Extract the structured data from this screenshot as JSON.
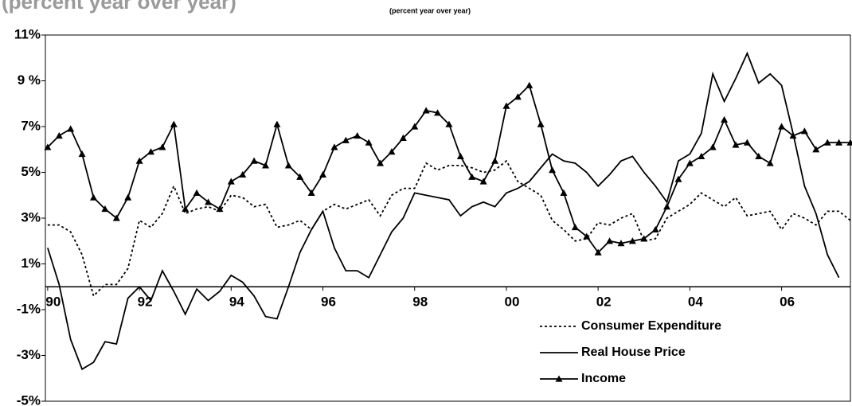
{
  "chart_data": {
    "type": "line",
    "subtitle": "(percent year over year)",
    "x": [
      1990.0,
      1990.25,
      1990.5,
      1990.75,
      1991.0,
      1991.25,
      1991.5,
      1991.75,
      1992.0,
      1992.25,
      1992.5,
      1992.75,
      1993.0,
      1993.25,
      1993.5,
      1993.75,
      1994.0,
      1994.25,
      1994.5,
      1994.75,
      1995.0,
      1995.25,
      1995.5,
      1995.75,
      1996.0,
      1996.25,
      1996.5,
      1996.75,
      1997.0,
      1997.25,
      1997.5,
      1997.75,
      1998.0,
      1998.25,
      1998.5,
      1998.75,
      1999.0,
      1999.25,
      1999.5,
      1999.75,
      2000.0,
      2000.25,
      2000.5,
      2000.75,
      2001.0,
      2001.25,
      2001.5,
      2001.75,
      2002.0,
      2002.25,
      2002.5,
      2002.75,
      2003.0,
      2003.25,
      2003.5,
      2003.75,
      2004.0,
      2004.25,
      2004.5,
      2004.75,
      2005.0,
      2005.25,
      2005.5,
      2005.75,
      2006.0,
      2006.25,
      2006.5,
      2006.75,
      2007.0,
      2007.25,
      2007.5
    ],
    "series": [
      {
        "name": "Consumer Expenditure",
        "color": "#000000",
        "line_style": "dotted",
        "marker": "none",
        "values": [
          2.7,
          2.7,
          2.4,
          1.4,
          -0.4,
          0.1,
          0.1,
          0.8,
          2.9,
          2.6,
          3.2,
          4.4,
          3.2,
          3.4,
          3.5,
          3.3,
          4.0,
          3.9,
          3.5,
          3.6,
          2.6,
          2.7,
          2.9,
          2.5,
          3.3,
          3.6,
          3.4,
          3.6,
          3.8,
          3.1,
          4.0,
          4.3,
          4.3,
          5.4,
          5.1,
          5.3,
          5.3,
          5.2,
          5.0,
          5.1,
          5.5,
          4.6,
          4.3,
          4.0,
          2.9,
          2.5,
          2.0,
          2.1,
          2.8,
          2.7,
          3.0,
          3.2,
          2.0,
          2.1,
          3.0,
          3.3,
          3.6,
          4.1,
          3.8,
          3.5,
          3.9,
          3.1,
          3.2,
          3.3,
          2.5,
          3.2,
          3.0,
          2.7,
          3.3,
          3.3,
          2.9
        ]
      },
      {
        "name": "Real House Price",
        "color": "#000000",
        "line_style": "solid",
        "marker": "none",
        "values": [
          1.7,
          0.1,
          -2.3,
          -3.6,
          -3.3,
          -2.4,
          -2.5,
          -0.5,
          0.0,
          -0.6,
          0.7,
          -0.2,
          -1.2,
          -0.1,
          -0.6,
          -0.2,
          0.5,
          0.2,
          -0.4,
          -1.3,
          -1.4,
          0.0,
          1.5,
          2.5,
          3.3,
          1.7,
          0.7,
          0.7,
          0.4,
          1.4,
          2.4,
          3.0,
          4.1,
          4.0,
          3.9,
          3.8,
          3.1,
          3.5,
          3.7,
          3.5,
          4.1,
          4.3,
          4.6,
          5.2,
          5.8,
          5.5,
          5.4,
          5.0,
          4.4,
          4.9,
          5.5,
          5.7,
          5.0,
          4.4,
          3.7,
          5.5,
          5.8,
          6.7,
          9.3,
          8.1,
          9.1,
          10.2,
          8.9,
          9.3,
          8.8,
          6.7,
          4.4,
          3.2,
          1.4,
          0.4,
          null
        ]
      },
      {
        "name": "Income",
        "color": "#000000",
        "line_style": "solid",
        "marker": "triangle",
        "values": [
          6.1,
          6.6,
          6.9,
          5.8,
          3.9,
          3.4,
          3.0,
          3.9,
          5.5,
          5.9,
          6.1,
          7.1,
          3.4,
          4.1,
          3.7,
          3.4,
          4.6,
          4.9,
          5.5,
          5.3,
          7.1,
          5.3,
          4.8,
          4.1,
          4.9,
          6.1,
          6.4,
          6.6,
          6.3,
          5.4,
          5.9,
          6.5,
          7.0,
          7.7,
          7.6,
          7.1,
          5.7,
          4.8,
          4.6,
          5.5,
          7.9,
          8.3,
          8.8,
          7.1,
          5.1,
          4.1,
          2.6,
          2.2,
          1.5,
          2.0,
          1.9,
          2.0,
          2.1,
          2.5,
          3.5,
          4.7,
          5.4,
          5.7,
          6.1,
          7.3,
          6.2,
          6.3,
          5.7,
          5.4,
          7.0,
          6.6,
          6.8,
          6.0,
          6.3,
          6.3,
          6.3
        ]
      }
    ],
    "xlim": [
      1989.95,
      2007.5
    ],
    "xticks": [
      {
        "value": 1990,
        "label": "90"
      },
      {
        "value": 1992,
        "label": "92"
      },
      {
        "value": 1994,
        "label": "94"
      },
      {
        "value": 1996,
        "label": "96"
      },
      {
        "value": 1998,
        "label": "98"
      },
      {
        "value": 2000,
        "label": "00"
      },
      {
        "value": 2002,
        "label": "02"
      },
      {
        "value": 2004,
        "label": "04"
      },
      {
        "value": 2006,
        "label": "06"
      }
    ],
    "ylim": [
      -5,
      11
    ],
    "yticks": [
      {
        "value": 11,
        "label": "11%"
      },
      {
        "value": 9,
        "label": "9 %"
      },
      {
        "value": 7,
        "label": "7%"
      },
      {
        "value": 5,
        "label": "5%"
      },
      {
        "value": 3,
        "label": "3%"
      },
      {
        "value": 1,
        "label": "1%"
      },
      {
        "value": -1,
        "label": "-1%"
      },
      {
        "value": -3,
        "label": "-3%"
      },
      {
        "value": -5,
        "label": "-5%"
      }
    ],
    "grid": false,
    "legend": "bottom-right"
  }
}
